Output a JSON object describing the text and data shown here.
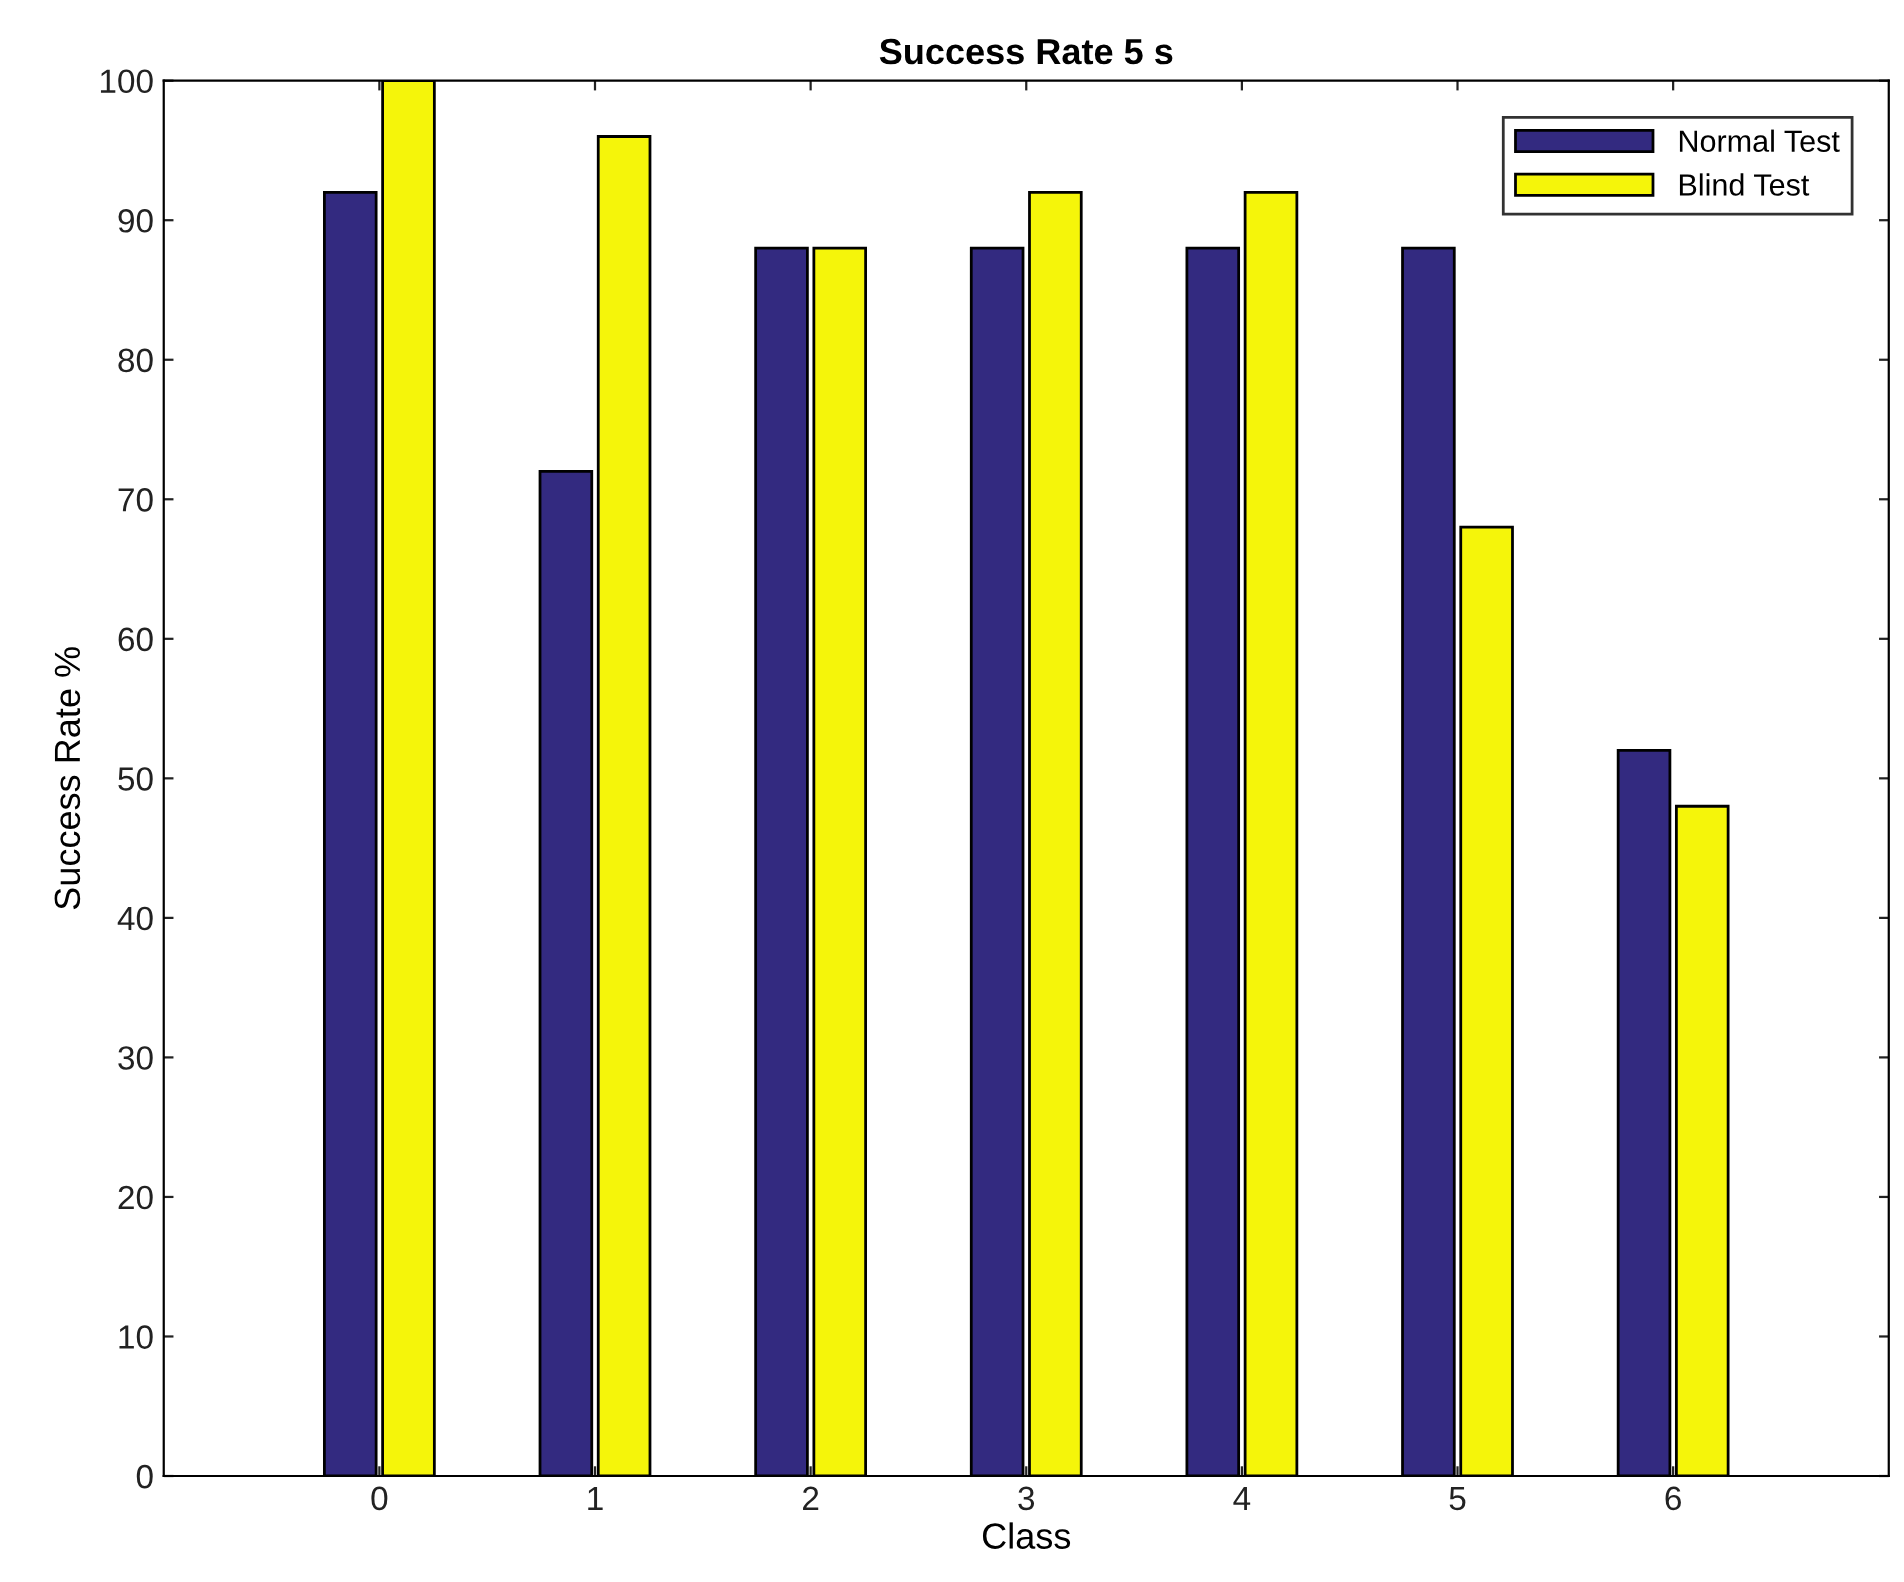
{
  "chart_data": {
    "type": "bar",
    "title": "Success Rate 5 s",
    "xlabel": "Class",
    "ylabel": "Success Rate %",
    "x": [
      0,
      1,
      2,
      3,
      4,
      5,
      6
    ],
    "series": [
      {
        "name": "Normal Test",
        "color": "#332a80",
        "values": [
          92,
          72,
          88,
          88,
          88,
          88,
          52
        ]
      },
      {
        "name": "Blind Test",
        "color": "#f5f50a",
        "values": [
          100,
          96,
          88,
          92,
          92,
          68,
          48
        ]
      }
    ],
    "xlim": [
      -1,
      7
    ],
    "xticks": [
      0,
      1,
      2,
      3,
      4,
      5,
      6
    ],
    "ylim": [
      0,
      100
    ],
    "yticks": [
      0,
      10,
      20,
      30,
      40,
      50,
      60,
      70,
      80,
      90,
      100
    ],
    "grid": false,
    "legend": "top right"
  }
}
